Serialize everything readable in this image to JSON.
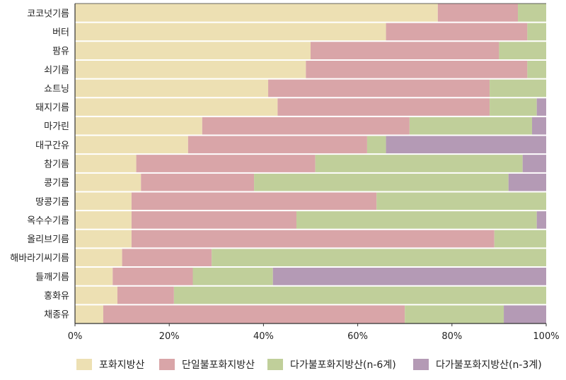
{
  "chart_data": {
    "type": "bar",
    "orientation": "horizontal",
    "stacked": true,
    "categories": [
      "코코넛기름",
      "버터",
      "팜유",
      "쇠기름",
      "쇼트닝",
      "돼지기름",
      "마가린",
      "대구간유",
      "참기름",
      "콩기름",
      "땅콩기름",
      "옥수수기름",
      "올리브기름",
      "해바라기씨기름",
      "들깨기름",
      "홍화유",
      "채종유"
    ],
    "series": [
      {
        "name": "포화지방산",
        "color": "#ede0b3",
        "values": [
          77,
          66,
          50,
          49,
          41,
          43,
          27,
          24,
          13,
          14,
          12,
          12,
          12,
          10,
          8,
          9,
          6
        ]
      },
      {
        "name": "단일불포화지방산",
        "color": "#d9a5a8",
        "values": [
          17,
          30,
          40,
          47,
          47,
          45,
          44,
          38,
          38,
          24,
          52,
          35,
          77,
          19,
          17,
          12,
          64
        ]
      },
      {
        "name": "다가불포화지방산(n-6계)",
        "color": "#c0cf9a",
        "values": [
          6,
          4,
          10,
          4,
          12,
          10,
          26,
          4,
          44,
          54,
          36,
          51,
          11,
          71,
          17,
          79,
          21
        ]
      },
      {
        "name": "다가불포화지방산(n-3계)",
        "color": "#b49ab5",
        "values": [
          0,
          0,
          0,
          0,
          0,
          2,
          3,
          34,
          5,
          8,
          0,
          2,
          0,
          0,
          58,
          0,
          9
        ]
      }
    ],
    "xlim": [
      0,
      100
    ],
    "x_ticks": [
      "0%",
      "20%",
      "40%",
      "60%",
      "80%",
      "100%"
    ],
    "grid": false,
    "legend_position": "bottom"
  }
}
